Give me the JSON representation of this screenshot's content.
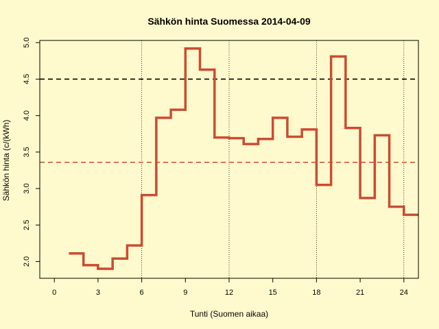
{
  "chart_data": {
    "type": "line",
    "step": true,
    "title": "Sähkön hinta Suomessa 2014-04-09",
    "xlabel": "Tunti (Suomen aikaa)",
    "ylabel": "Sähkön hinta (c/(kWh)",
    "xlim": [
      -1,
      25
    ],
    "ylim": [
      1.77,
      5.03
    ],
    "x_ticks": [
      0,
      3,
      6,
      9,
      12,
      15,
      18,
      21,
      24
    ],
    "y_ticks": [
      2.0,
      2.5,
      3.0,
      3.5,
      4.0,
      4.5,
      5.0
    ],
    "y_tick_labels": [
      "2.0",
      "2.5",
      "3.0",
      "3.5",
      "4.0",
      "4.5",
      "5.0"
    ],
    "grid": false,
    "vlines": [
      6,
      12,
      18,
      24
    ],
    "series": [
      {
        "color": "#CD4A33",
        "x": [
          1,
          2,
          3,
          4,
          5,
          6,
          7,
          8,
          9,
          10,
          11,
          12,
          13,
          14,
          15,
          16,
          17,
          18,
          19,
          20,
          21,
          22,
          23,
          24
        ],
        "values": [
          2.11,
          1.95,
          1.9,
          2.04,
          2.22,
          2.91,
          3.97,
          4.08,
          4.92,
          4.63,
          3.7,
          3.69,
          3.61,
          3.68,
          3.97,
          3.71,
          3.81,
          3.05,
          4.81,
          3.83,
          2.87,
          3.73,
          2.75,
          2.64
        ]
      }
    ],
    "reference_lines": [
      {
        "y": 4.5,
        "color": "#000000",
        "style": "dashed"
      },
      {
        "y": 3.36,
        "color": "#CD4A33",
        "style": "dashed"
      }
    ]
  }
}
